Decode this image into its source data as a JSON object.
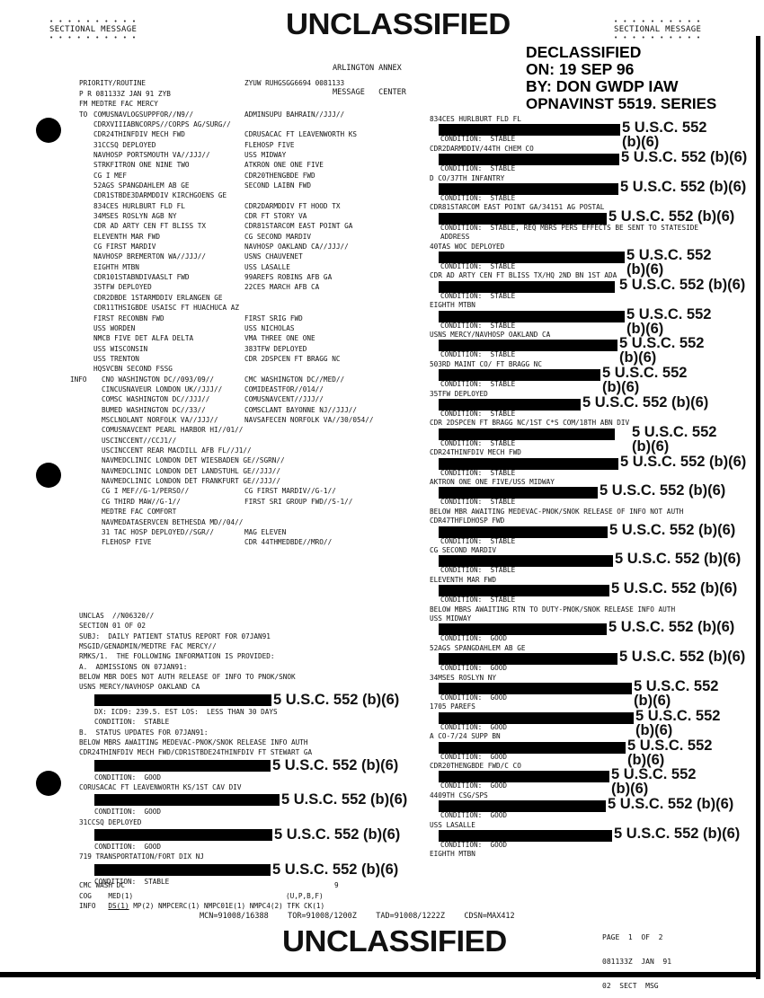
{
  "header": {
    "sectional_left": "SECTIONAL MESSAGE",
    "sectional_right": "SECTIONAL MESSAGE",
    "classification": "UNCLASSIFIED",
    "center_line1": "ARLINGTON ANNEX",
    "center_line2": "MESSAGE   CENTER"
  },
  "declass_stamp": {
    "line1": "DECLASSIFIED",
    "line2": "ON: 19 SEP 96",
    "line3": "BY: DON GWDP IAW",
    "line4": "OPNAVINST 5519. SERIES"
  },
  "redaction_label": "5 U.S.C. 552 (b)(6)",
  "redaction_label_a": "5 U.S.C. 552",
  "redaction_label_b": "(b)(6)",
  "left": {
    "priority": "PRIORITY/ROUTINE",
    "routing": "ZYUW RUHGSGG6694 0081133",
    "dtg": "P R 081133Z JAN 91 ZYB",
    "from": "FM MEDTRE FAC MERCY",
    "addressees": [
      {
        "p": "TO",
        "a": "COMUSNAVLOGSUPPFOR//N9//",
        "b": "ADMINSUPU BAHRAIN//JJJ//"
      },
      {
        "p": "",
        "a": "CDRXVIIIABNCORPS//CORPS AG/SURG//",
        "b": ""
      },
      {
        "p": "",
        "a": "CDR24THINFDIV MECH FWD",
        "b": "CDRUSACAC FT LEAVENWORTH KS"
      },
      {
        "p": "",
        "a": "31CCSQ DEPLOYED",
        "b": "FLEHOSP FIVE"
      },
      {
        "p": "",
        "a": "NAVHOSP PORTSMOUTH VA//JJJ//",
        "b": "USS MIDWAY"
      },
      {
        "p": "",
        "a": "STRKFITRON ONE NINE TWO",
        "b": "ATKRON ONE ONE FIVE"
      },
      {
        "p": "",
        "a": "CG I MEF",
        "b": "CDR20THENGBDE FWD"
      },
      {
        "p": "",
        "a": "52AGS SPANGDAHLEM AB GE",
        "b": "SECOND LAIBN FWD"
      },
      {
        "p": "",
        "a": "CDR1STBDE3DARMDDIV KIRCHGOENS GE",
        "b": ""
      },
      {
        "p": "",
        "a": "834CES HURLBURT FLD FL",
        "b": "CDR2DARMDDIV FT HOOD TX"
      },
      {
        "p": "",
        "a": "34MSES ROSLYN AGB NY",
        "b": "CDR FT STORY VA"
      },
      {
        "p": "",
        "a": "CDR AD ARTY CEN FT BLISS TX",
        "b": "CDR81STARCOM EAST POINT GA"
      },
      {
        "p": "",
        "a": "ELEVENTH MAR FWD",
        "b": "CG SECOND MARDIV"
      },
      {
        "p": "",
        "a": "CG FIRST MARDIV",
        "b": "NAVHOSP OAKLAND CA//JJJ//"
      },
      {
        "p": "",
        "a": "NAVHOSP BREMERTON WA//JJJ//",
        "b": "USNS CHAUVENET"
      },
      {
        "p": "",
        "a": "EIGHTH MTBN",
        "b": "USS LASALLE"
      },
      {
        "p": "",
        "a": "CDR101STABNDIVAASLT FWD",
        "b": "99AREFS ROBINS AFB GA"
      },
      {
        "p": "",
        "a": "35TFW DEPLOYED",
        "b": "22CES MARCH AFB CA"
      },
      {
        "p": "",
        "a": "CDR2DBDE 1STARMDDIV ERLANGEN GE",
        "b": ""
      },
      {
        "p": "",
        "a": "CDR11THSIGBDE USAISC FT HUACHUCA AZ",
        "b": ""
      },
      {
        "p": "",
        "a": "FIRST RECONBN FWD",
        "b": "FIRST SRIG FWD"
      },
      {
        "p": "",
        "a": "USS WORDEN",
        "b": "USS NICHOLAS"
      },
      {
        "p": "",
        "a": "NMCB FIVE DET ALFA DELTA",
        "b": "VMA THREE ONE ONE"
      },
      {
        "p": "",
        "a": "USS WISCONSIN",
        "b": "383TFW DEPLOYED"
      },
      {
        "p": "",
        "a": "USS TRENTON",
        "b": "CDR 2DSPCEN FT BRAGG NC"
      },
      {
        "p": "",
        "a": "HQSVCBN SECOND FSSG",
        "b": ""
      },
      {
        "p": "INFO",
        "a": "CNO WASHINGTON DC//093/09//",
        "b": "CMC WASHINGTON DC//MED//"
      },
      {
        "p": "",
        "a": "CINCUSNAVEUR LONDON UK//JJJ//",
        "b": "COMIDEASTFOR//014//"
      },
      {
        "p": "",
        "a": "COMSC WASHINGTON DC//JJJ//",
        "b": "COMUSNAVCENT//JJJ//"
      },
      {
        "p": "",
        "a": "BUMED WASHINGTON DC//33//",
        "b": "COMSCLANT BAYONNE NJ//JJJ//"
      },
      {
        "p": "",
        "a": "MSCLNOLANT NORFOLK VA//JJJ//",
        "b": "NAVSAFECEN NORFOLK VA//30/054//"
      },
      {
        "p": "",
        "a": "COMUSNAVCENT PEARL HARBOR HI//01//",
        "b": ""
      },
      {
        "p": "",
        "a": "USCINCCENT//CCJ1//",
        "b": ""
      },
      {
        "p": "",
        "a": "USCINCCENT REAR MACDILL AFB FL//J1//",
        "b": ""
      },
      {
        "p": "",
        "a": "NAVMEDCLINIC LONDON DET WIESBADEN GE//SGRN//",
        "b": ""
      },
      {
        "p": "",
        "a": "NAVMEDCLINIC LONDON DET LANDSTUHL GE//JJJ//",
        "b": ""
      },
      {
        "p": "",
        "a": "NAVMEDCLINIC LONDON DET FRANKFURT GE//JJJ//",
        "b": ""
      },
      {
        "p": "",
        "a": "CG I MEF//G-1/PERSO//",
        "b": "CG FIRST MARDIV//G-1//"
      },
      {
        "p": "",
        "a": "CG THIRD MAW//G-1//",
        "b": "FIRST SRI GROUP FWD//S-1//"
      },
      {
        "p": "",
        "a": "MEDTRE FAC COMFORT",
        "b": ""
      },
      {
        "p": "",
        "a": "NAVMEDATASERVCEN BETHESDA MD//04//",
        "b": ""
      },
      {
        "p": "",
        "a": "31 TAC HOSP DEPLOYED//SGR//",
        "b": "MAG ELEVEN"
      },
      {
        "p": "",
        "a": "FLEHOSP FIVE",
        "b": "CDR 44THMEDBDE//MRO//"
      }
    ],
    "body": [
      {
        "t": "text",
        "v": "UNCLAS  //N06320//"
      },
      {
        "t": "text",
        "v": "SECTION 01 OF 02"
      },
      {
        "t": "text",
        "v": "SUBJ:  DAILY PATIENT STATUS REPORT FOR 07JAN91"
      },
      {
        "t": "text",
        "v": "MSGID/GENADMIN/MEDTRE FAC MERCY//"
      },
      {
        "t": "text",
        "v": "RMKS/1.  THE FOLLOWING INFORMATION IS PROVIDED:"
      },
      {
        "t": "text",
        "v": "A.  ADMISSIONS ON 07JAN91:"
      },
      {
        "t": "text",
        "v": "BELOW MBR DOES NOT AUTH RELEASE OF INFO TO PNOK/SNOK"
      },
      {
        "t": "text",
        "v": "USNS MERCY/NAVHOSP OAKLAND CA"
      },
      {
        "t": "bar"
      },
      {
        "t": "ind",
        "v": "DX: ICD9: 239.5. EST LOS:  LESS THAN 30 DAYS"
      },
      {
        "t": "ind",
        "v": "CONDITION:  STABLE"
      },
      {
        "t": "text",
        "v": "B.  STATUS UPDATES FOR 07JAN91:"
      },
      {
        "t": "text",
        "v": "BELOW MBRS AWAITING MEDEVAC-PNOK/SNOK RELEASE INFO AUTH"
      },
      {
        "t": "text",
        "v": "CDR24THINFDIV MECH FWD/CDR1STBDE24THINFDIV FT STEWART GA"
      },
      {
        "t": "bar"
      },
      {
        "t": "ind",
        "v": "CONDITION:  GOOD"
      },
      {
        "t": "text",
        "v": "CORUSACAC FT LEAVENWORTH KS/1ST CAV DIV"
      },
      {
        "t": "bar"
      },
      {
        "t": "ind",
        "v": "CONDITION:  GOOD"
      },
      {
        "t": "text",
        "v": "31CCSQ DEPLOYED"
      },
      {
        "t": "bar"
      },
      {
        "t": "ind",
        "v": "CONDITION:  GOOD"
      },
      {
        "t": "text",
        "v": "719 TRANSPORTATION/FORT DIX NJ"
      },
      {
        "t": "bar"
      },
      {
        "t": "ind",
        "v": "CONDITION:  STABLE"
      }
    ],
    "footer_lines": {
      "cmc": "CMC WASH DC",
      "page_mark": "9",
      "cog": "COG    MED(1)",
      "cog_codes": "(U,P,B,F)",
      "info_label": "INFO",
      "info_ds": "DS(1)",
      "info_rest": " MP(2) NMPCERC(1) NMPC01E(1) NMPC4(2) TFK CK(1)"
    }
  },
  "right": {
    "entries": [
      {
        "h": "834CES HURLBURT FLD FL",
        "c": "CONDITION:  STABLE"
      },
      {
        "h": "CDR2DARMDDIV/44TH CHEM CO",
        "c": "CONDITION:  STABLE"
      },
      {
        "h": "D CO/37TH INFANTRY",
        "c": "CONDITION:  STABLE"
      },
      {
        "h": "CDR81STARCOM EAST POINT GA/34151 AG POSTAL",
        "c": "CONDITION:  STABLE, REQ MBRS PERS EFFECTS BE SENT TO STATESIDE",
        "c2": "ADDRESS"
      },
      {
        "h": "40TAS WOC DEPLOYED",
        "c": "CONDITION:  STABLE"
      },
      {
        "h": "CDR AD ARTY CEN FT BLISS TX/HQ 2ND BN 1ST ADA",
        "c": "CONDITION:  STABLE"
      },
      {
        "h": "EIGHTH MTBN",
        "c": "CONDITION:  STABLE"
      },
      {
        "h": "USNS MERCY/NAVHOSP OAKLAND CA",
        "c": "CONDITION:  STABLE"
      },
      {
        "h": "503RD MAINT CO/ FT BRAGG NC",
        "c": "CONDITION:  STABLE"
      },
      {
        "h": "35TFW DEPLOYED",
        "c": "CONDITION:  STABLE"
      },
      {
        "h": "CDR 2DSPCEN FT BRAGG NC/1ST C*S COM/18TH ABN DIV",
        "c": "CONDITION:  STABLE"
      },
      {
        "h": "CDR24THINFDIV MECH FWD",
        "c": "CONDITION:  STABLE"
      },
      {
        "h": "AKTRON ONE ONE FIVE/USS MIDWAY",
        "c": "CONDITION:  STABLE"
      },
      {
        "pre": "BELOW MBR AWAITING MEDEVAC-PNOK/SNOK RELEASE OF INFO NOT AUTH",
        "h": "CDR47THFLDHOSP FWD",
        "c": "CONDITION:  STABLE"
      },
      {
        "h": "CG SECOND MARDIV",
        "c": "CONDITION:  STABLE"
      },
      {
        "h": "ELEVENTH MAR FWD",
        "c": "CONDITION:  STABLE"
      },
      {
        "pre": "BELOW MBRS AWAITING RTN TO DUTY-PNOK/SNOK RELEASE INFO AUTH",
        "h": "USS MIDWAY",
        "c": "CONDITION:  GOOD"
      },
      {
        "h": "52AGS SPANGDAHLEM AB GE",
        "c": "CONDITION:  GOOD"
      },
      {
        "h": "34MSES ROSLYN NY",
        "c": "CONDITION:  GOOD"
      },
      {
        "h": "1705 PAREFS",
        "c": "CONDITION:  GOOD"
      },
      {
        "h": "A CO-7/24 SUPP BN",
        "c": "CONDITION:  GOOD"
      },
      {
        "h": "CDR20THENGBDE FWD/C CO",
        "c": "CONDITION:  GOOD"
      },
      {
        "h": "4409TH CSG/SPS",
        "c": "CONDITION:  GOOD"
      },
      {
        "h": "USS LASALLE",
        "c": "CONDITION:  GOOD"
      },
      {
        "h": "EIGHTH MTBN"
      }
    ]
  },
  "footer": {
    "mcn": "MCN=91008/16388",
    "tor": "TOR=91008/1200Z",
    "tad": "TAD=91008/1222Z",
    "cdsn": "CDSN=MAX412",
    "page": "PAGE  1  OF  2",
    "dtg": "081133Z  JAN  91",
    "sect": "02  SECT  MSG",
    "classification": "UNCLASSIFIED"
  }
}
